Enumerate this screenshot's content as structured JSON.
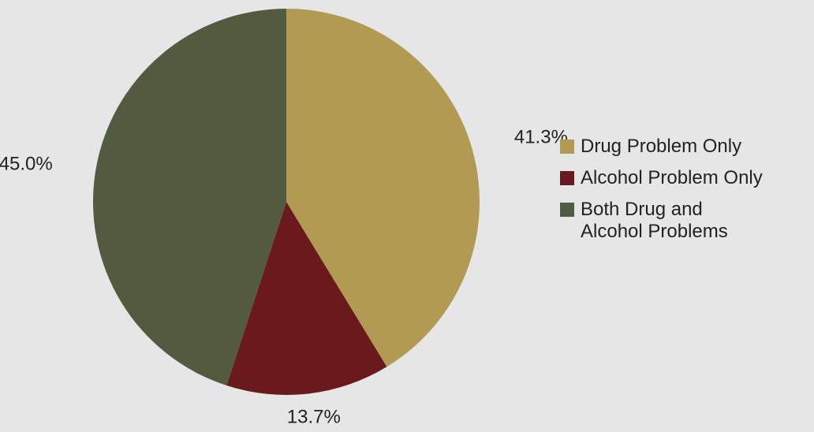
{
  "chart_data": {
    "type": "pie",
    "categories": [
      "Drug Problem Only",
      "Alcohol Problem Only",
      "Both Drug and Alcohol Problems"
    ],
    "values": [
      41.3,
      13.7,
      45.0
    ],
    "value_labels": [
      "41.3%",
      "13.7%",
      "45.0%"
    ],
    "colors": [
      "#b39a52",
      "#6a1a1c",
      "#525a40"
    ],
    "legend": "right"
  }
}
